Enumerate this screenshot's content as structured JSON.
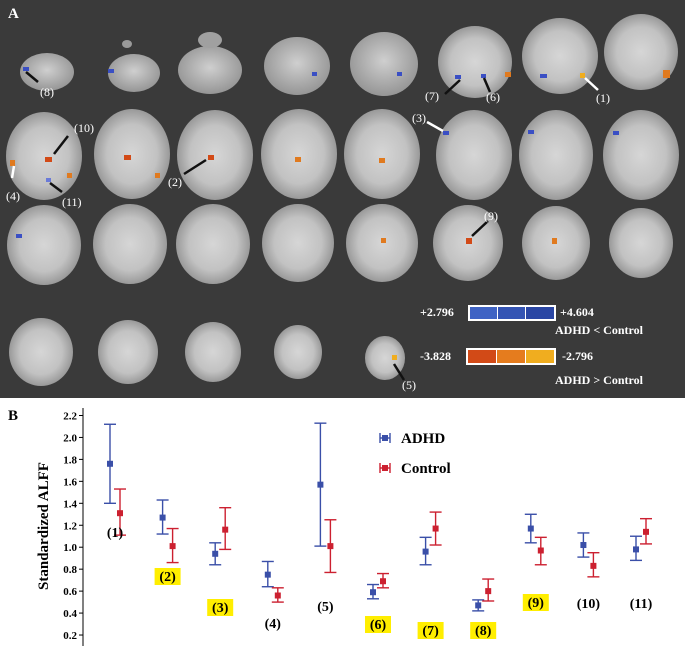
{
  "panel_a": {
    "label": "A",
    "slice_labels": [
      "(8)",
      "(7)",
      "(6)",
      "(1)",
      "(10)",
      "(4)",
      "(11)",
      "(2)",
      "(3)",
      "(9)",
      "(5)"
    ],
    "colorbar_blue": {
      "min_label": "+2.796",
      "max_label": "+4.604",
      "caption": "ADHD < Control",
      "colors": [
        "#3f63c4",
        "#3454b4",
        "#2a46a4"
      ]
    },
    "colorbar_red": {
      "min_label": "-3.828",
      "max_label": "-2.796",
      "caption": "ADHD > Control",
      "colors": [
        "#d24a17",
        "#e57c1e",
        "#f0ad1f"
      ]
    }
  },
  "panel_b": {
    "label": "B"
  },
  "chart_data": {
    "type": "errorbar",
    "title": "",
    "xlabel": "",
    "ylabel": "Standardized ALFF",
    "ylim": [
      0.1,
      2.25
    ],
    "yticks": [
      "2.2",
      "2.0",
      "1.8",
      "1.6",
      "1.4",
      "1.2",
      "1.0",
      "0.8",
      "0.6",
      "0.4",
      "0.2"
    ],
    "categories": [
      "(1)",
      "(2)",
      "(3)",
      "(4)",
      "(5)",
      "(6)",
      "(7)",
      "(8)",
      "(9)",
      "(10)",
      "(11)"
    ],
    "highlighted": [
      false,
      true,
      true,
      false,
      false,
      true,
      true,
      true,
      true,
      false,
      false
    ],
    "series": [
      {
        "name": "ADHD",
        "color": "#3a4fa8",
        "mean": [
          1.76,
          1.27,
          0.94,
          0.75,
          1.57,
          0.59,
          0.96,
          0.47,
          1.17,
          1.02,
          0.98
        ],
        "lower": [
          1.4,
          1.12,
          0.84,
          0.64,
          1.01,
          0.53,
          0.84,
          0.42,
          1.04,
          0.91,
          0.88
        ],
        "upper": [
          2.12,
          1.43,
          1.04,
          0.87,
          2.13,
          0.66,
          1.09,
          0.52,
          1.3,
          1.13,
          1.1
        ]
      },
      {
        "name": "Control",
        "color": "#cc2030",
        "mean": [
          1.31,
          1.01,
          1.16,
          0.56,
          1.01,
          0.69,
          1.17,
          0.6,
          0.97,
          0.83,
          1.14
        ],
        "lower": [
          1.11,
          0.86,
          0.98,
          0.5,
          0.77,
          0.63,
          1.02,
          0.51,
          0.84,
          0.73,
          1.03
        ],
        "upper": [
          1.53,
          1.17,
          1.36,
          0.63,
          1.25,
          0.76,
          1.32,
          0.71,
          1.09,
          0.95,
          1.26
        ]
      }
    ],
    "legend": [
      "ADHD",
      "Control"
    ],
    "legend_position": "top-right"
  }
}
